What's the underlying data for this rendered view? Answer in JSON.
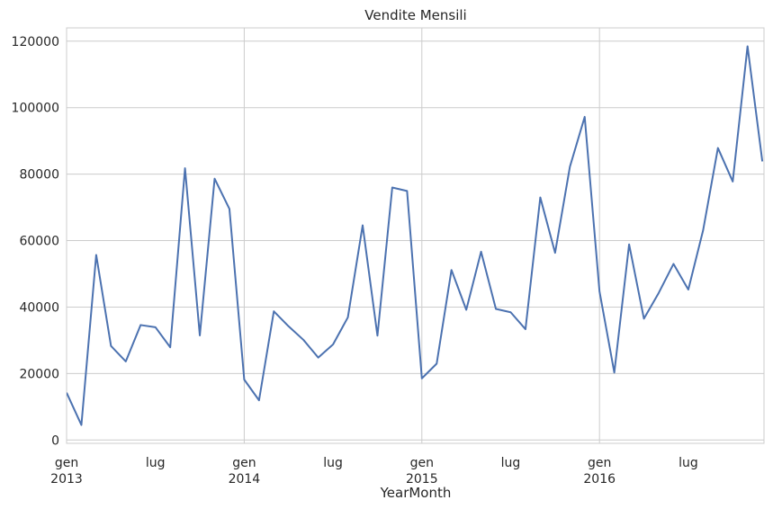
{
  "chart_data": {
    "type": "line",
    "title": "Vendite Mensili",
    "xlabel": "YearMonth",
    "ylabel": "",
    "x": [
      "2013-01",
      "2013-02",
      "2013-03",
      "2013-04",
      "2013-05",
      "2013-06",
      "2013-07",
      "2013-08",
      "2013-09",
      "2013-10",
      "2013-11",
      "2013-12",
      "2014-01",
      "2014-02",
      "2014-03",
      "2014-04",
      "2014-05",
      "2014-06",
      "2014-07",
      "2014-08",
      "2014-09",
      "2014-10",
      "2014-11",
      "2014-12",
      "2015-01",
      "2015-02",
      "2015-03",
      "2015-04",
      "2015-05",
      "2015-06",
      "2015-07",
      "2015-08",
      "2015-09",
      "2015-10",
      "2015-11",
      "2015-12",
      "2016-01",
      "2016-02",
      "2016-03",
      "2016-04",
      "2016-05",
      "2016-06",
      "2016-07",
      "2016-08",
      "2016-09",
      "2016-10",
      "2016-11",
      "2016-12"
    ],
    "series": [
      {
        "values": [
          14237,
          4520,
          55691,
          28295,
          23648,
          34595,
          33946,
          27909,
          81777,
          31453,
          78629,
          69546,
          18175,
          11951,
          38726,
          34195,
          30132,
          24797,
          28765,
          36898,
          64596,
          31405,
          75973,
          74920,
          18542,
          22979,
          51165,
          39172,
          56657,
          39443,
          38430,
          33352,
          72984,
          56328,
          82205,
          97238,
          44703,
          20301,
          58872,
          36522,
          44261,
          52982,
          45264,
          63121,
          87867,
          77777,
          118448,
          83829
        ],
        "color": "#4c72b0"
      }
    ],
    "ylim": [
      -1000,
      124000
    ],
    "yticks": [
      0,
      20000,
      40000,
      60000,
      80000,
      100000,
      120000
    ],
    "xticks": [
      {
        "at": "2013-01",
        "label": "gen",
        "year": "2013"
      },
      {
        "at": "2013-07",
        "label": "lug",
        "year": ""
      },
      {
        "at": "2014-01",
        "label": "gen",
        "year": "2014"
      },
      {
        "at": "2014-07",
        "label": "lug",
        "year": ""
      },
      {
        "at": "2015-01",
        "label": "gen",
        "year": "2015"
      },
      {
        "at": "2015-07",
        "label": "lug",
        "year": ""
      },
      {
        "at": "2016-01",
        "label": "gen",
        "year": "2016"
      },
      {
        "at": "2016-07",
        "label": "lug",
        "year": ""
      }
    ],
    "major_gridlines_x": [
      "2014-01",
      "2015-01",
      "2016-01"
    ],
    "grid": true,
    "legend": "none"
  }
}
